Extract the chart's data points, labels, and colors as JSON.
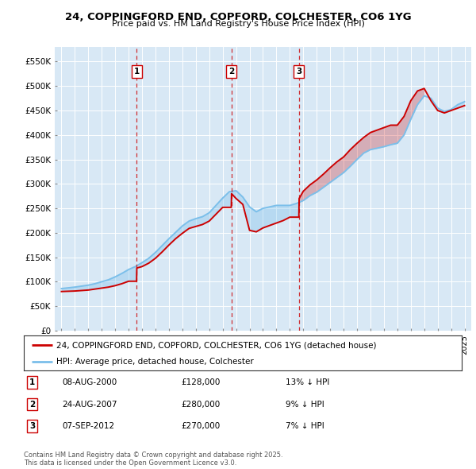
{
  "title": "24, COPPINGFORD END, COPFORD, COLCHESTER, CO6 1YG",
  "subtitle": "Price paid vs. HM Land Registry's House Price Index (HPI)",
  "ylabel_ticks": [
    "£0",
    "£50K",
    "£100K",
    "£150K",
    "£200K",
    "£250K",
    "£300K",
    "£350K",
    "£400K",
    "£450K",
    "£500K",
    "£550K"
  ],
  "ytick_values": [
    0,
    50000,
    100000,
    150000,
    200000,
    250000,
    300000,
    350000,
    400000,
    450000,
    500000,
    550000
  ],
  "xlim_start": 1994.5,
  "xlim_end": 2025.5,
  "ylim_top": 580000,
  "background_color": "#d8e8f5",
  "sale_color": "#cc0000",
  "hpi_color": "#7bbfea",
  "grid_color": "#ffffff",
  "sale_label": "24, COPPINGFORD END, COPFORD, COLCHESTER, CO6 1YG (detached house)",
  "hpi_label": "HPI: Average price, detached house, Colchester",
  "transactions": [
    {
      "num": 1,
      "date": "08-AUG-2000",
      "price": 128000,
      "hpi_pct": "13% ↓ HPI",
      "year": 2000.6
    },
    {
      "num": 2,
      "date": "24-AUG-2007",
      "price": 280000,
      "hpi_pct": "9% ↓ HPI",
      "year": 2007.65
    },
    {
      "num": 3,
      "date": "07-SEP-2012",
      "price": 270000,
      "hpi_pct": "7% ↓ HPI",
      "year": 2012.68
    }
  ],
  "footer": "Contains HM Land Registry data © Crown copyright and database right 2025.\nThis data is licensed under the Open Government Licence v3.0.",
  "hpi_x": [
    1995,
    1995.5,
    1996,
    1996.5,
    1997,
    1997.5,
    1998,
    1998.5,
    1999,
    1999.5,
    2000,
    2000.5,
    2001,
    2001.5,
    2002,
    2002.5,
    2003,
    2003.5,
    2004,
    2004.5,
    2005,
    2005.5,
    2006,
    2006.5,
    2007,
    2007.5,
    2008,
    2008.5,
    2009,
    2009.5,
    2010,
    2010.5,
    2011,
    2011.5,
    2012,
    2012.5,
    2013,
    2013.5,
    2014,
    2014.5,
    2015,
    2015.5,
    2016,
    2016.5,
    2017,
    2017.5,
    2018,
    2018.5,
    2019,
    2019.5,
    2020,
    2020.5,
    2021,
    2021.5,
    2022,
    2022.5,
    2023,
    2023.5,
    2024,
    2024.5,
    2025
  ],
  "hpi_y": [
    86000,
    87500,
    89000,
    91000,
    93000,
    96000,
    100000,
    104000,
    110000,
    117000,
    125000,
    131000,
    139000,
    148000,
    160000,
    174000,
    188000,
    201000,
    214000,
    224000,
    229000,
    233000,
    241000,
    256000,
    271000,
    284000,
    286000,
    273000,
    253000,
    243000,
    250000,
    253000,
    256000,
    256000,
    256000,
    260000,
    266000,
    276000,
    283000,
    293000,
    303000,
    313000,
    323000,
    336000,
    350000,
    363000,
    370000,
    373000,
    376000,
    380000,
    383000,
    400000,
    432000,
    462000,
    480000,
    475000,
    455000,
    448000,
    452000,
    462000,
    468000
  ],
  "sold_x": [
    1995,
    1995.5,
    1996,
    1996.5,
    1997,
    1997.5,
    1998,
    1998.5,
    1999,
    1999.5,
    2000.0,
    2000.59,
    2000.61,
    2001,
    2001.5,
    2002,
    2002.5,
    2003,
    2003.5,
    2004,
    2004.5,
    2005,
    2005.5,
    2006,
    2006.5,
    2007.0,
    2007.64,
    2007.66,
    2008,
    2008.5,
    2009,
    2009.5,
    2010,
    2010.5,
    2011,
    2011.5,
    2012,
    2012.67,
    2012.69,
    2013,
    2013.5,
    2014,
    2014.5,
    2015,
    2015.5,
    2016,
    2016.5,
    2017,
    2017.5,
    2018,
    2018.5,
    2019,
    2019.5,
    2020,
    2020.5,
    2021,
    2021.5,
    2022,
    2022.5,
    2023,
    2023.5,
    2024,
    2024.5,
    2025
  ],
  "sold_y": [
    80000,
    80500,
    81000,
    82000,
    83000,
    85000,
    87000,
    89000,
    92000,
    96000,
    101000,
    101000,
    128000,
    131000,
    138000,
    148000,
    161000,
    175000,
    188000,
    199000,
    209000,
    213000,
    217000,
    224000,
    238000,
    252000,
    252000,
    280000,
    270000,
    258000,
    205000,
    202000,
    210000,
    215000,
    220000,
    225000,
    232000,
    232000,
    270000,
    285000,
    298000,
    308000,
    320000,
    333000,
    345000,
    355000,
    370000,
    383000,
    395000,
    405000,
    410000,
    415000,
    420000,
    420000,
    438000,
    470000,
    490000,
    495000,
    470000,
    450000,
    445000,
    450000,
    455000,
    460000
  ]
}
